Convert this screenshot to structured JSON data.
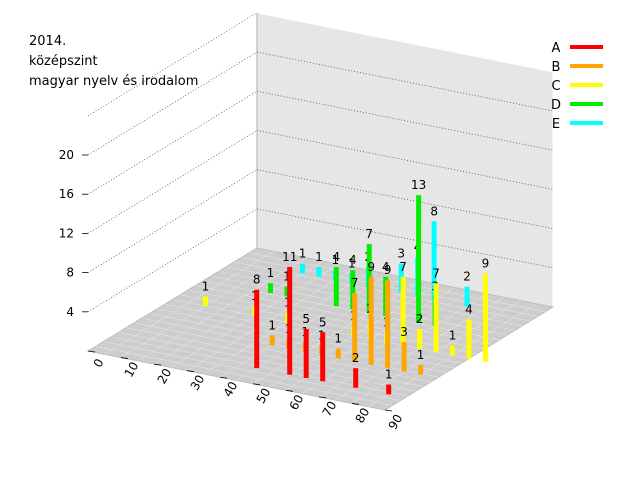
{
  "chart_data": {
    "type": "bar3d",
    "title_lines": [
      "2014.",
      "középszint",
      "magyar nyelv és irodalom"
    ],
    "z_ticks": [
      4,
      8,
      12,
      16,
      20
    ],
    "y_ticks": [
      0,
      10,
      20,
      30,
      40,
      50,
      60,
      70,
      80,
      90
    ],
    "zlim": [
      0,
      24
    ],
    "ylim": [
      0,
      90
    ],
    "grid": true,
    "legend_position": "top-right",
    "series": [
      {
        "name": "A",
        "color": "#ff0000",
        "points": [
          {
            "y": 85,
            "v": 1
          },
          {
            "y": 75,
            "v": 2
          },
          {
            "y": 65,
            "v": 5
          },
          {
            "y": 60,
            "v": 5
          },
          {
            "y": 55,
            "v": 11
          },
          {
            "y": 45,
            "v": 8
          }
        ]
      },
      {
        "name": "B",
        "color": "#ffa500",
        "points": [
          {
            "y": 45,
            "v": 1
          },
          {
            "y": 50,
            "v": 1
          },
          {
            "y": 55,
            "v": 1
          },
          {
            "y": 60,
            "v": 1
          },
          {
            "y": 40,
            "v": 1
          },
          {
            "y": 65,
            "v": 7
          },
          {
            "y": 70,
            "v": 9
          },
          {
            "y": 75,
            "v": 9
          },
          {
            "y": 80,
            "v": 3
          },
          {
            "y": 85,
            "v": 1
          }
        ]
      },
      {
        "name": "C",
        "color": "#ffff00",
        "points": [
          {
            "y": 10,
            "v": 1
          },
          {
            "y": 25,
            "v": 1
          },
          {
            "y": 35,
            "v": 1
          },
          {
            "y": 55,
            "v": 1
          },
          {
            "y": 60,
            "v": 2
          },
          {
            "y": 65,
            "v": 1
          },
          {
            "y": 70,
            "v": 7
          },
          {
            "y": 75,
            "v": 2
          },
          {
            "y": 80,
            "v": 7
          },
          {
            "y": 85,
            "v": 1
          },
          {
            "y": 90,
            "v": 4
          },
          {
            "y": 95,
            "v": 9
          }
        ]
      },
      {
        "name": "D",
        "color": "#00ee00",
        "points": [
          {
            "y": 20,
            "v": 1
          },
          {
            "y": 25,
            "v": 1
          },
          {
            "y": 40,
            "v": 4
          },
          {
            "y": 45,
            "v": 4
          },
          {
            "y": 50,
            "v": 7
          },
          {
            "y": 55,
            "v": 4
          },
          {
            "y": 65,
            "v": 13
          },
          {
            "y": 70,
            "v": 3
          }
        ]
      },
      {
        "name": "E",
        "color": "#00ffff",
        "points": [
          {
            "y": 20,
            "v": 1
          },
          {
            "y": 25,
            "v": 1
          },
          {
            "y": 30,
            "v": 1
          },
          {
            "y": 35,
            "v": 1
          },
          {
            "y": 40,
            "v": 2
          },
          {
            "y": 50,
            "v": 3
          },
          {
            "y": 55,
            "v": 4
          },
          {
            "y": 60,
            "v": 8
          },
          {
            "y": 70,
            "v": 2
          }
        ]
      }
    ]
  }
}
